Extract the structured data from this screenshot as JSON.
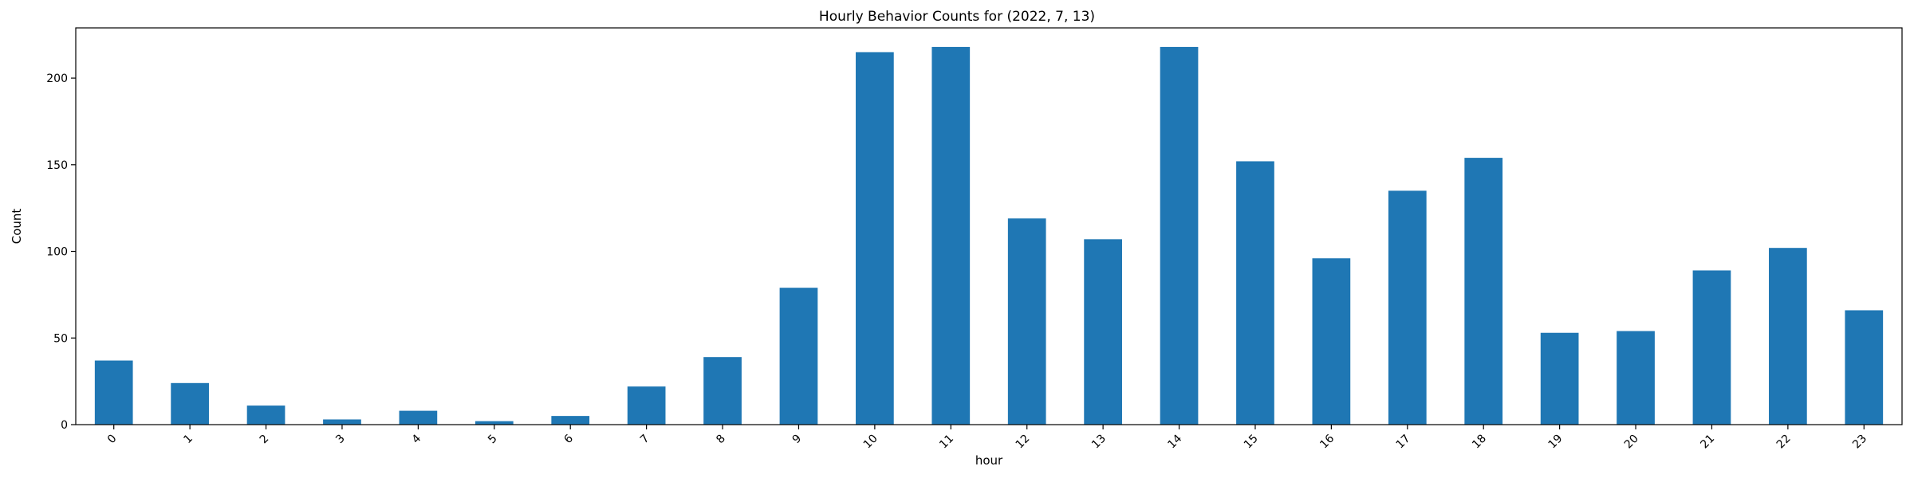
{
  "chart_data": {
    "type": "bar",
    "title": "Hourly Behavior Counts for (2022, 7, 13)",
    "xlabel": "hour",
    "ylabel": "Count",
    "categories": [
      "0",
      "1",
      "2",
      "3",
      "4",
      "5",
      "6",
      "7",
      "8",
      "9",
      "10",
      "11",
      "12",
      "13",
      "14",
      "15",
      "16",
      "17",
      "18",
      "19",
      "20",
      "21",
      "22",
      "23"
    ],
    "values": [
      37,
      24,
      11,
      3,
      8,
      2,
      5,
      22,
      39,
      79,
      215,
      218,
      119,
      107,
      218,
      152,
      96,
      135,
      154,
      53,
      54,
      89,
      102,
      66
    ],
    "ylim": [
      0,
      229
    ],
    "yticks": [
      0,
      50,
      100,
      150,
      200
    ],
    "xtick_rotation": 45,
    "grid": false,
    "bar_color": "#1f77b4"
  }
}
